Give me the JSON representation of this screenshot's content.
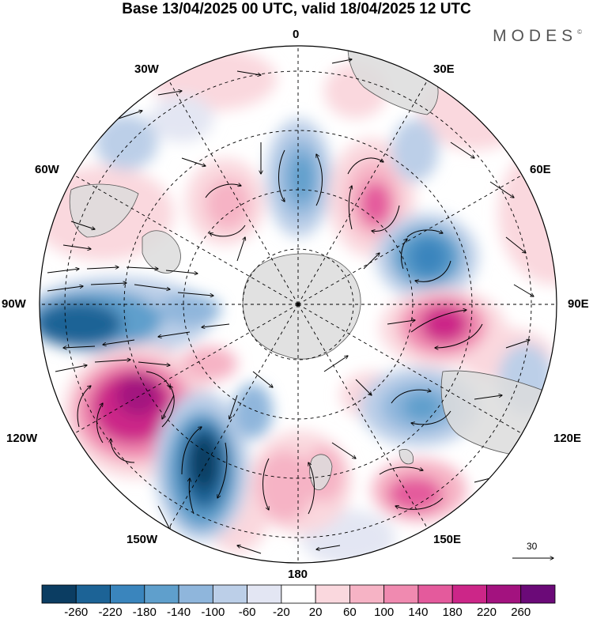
{
  "header": {
    "title": "Base 13/04/2025 00 UTC, valid 18/04/2025 12 UTC",
    "brand": "MODES",
    "brand_mark": "©"
  },
  "map": {
    "projection": "south-polar-stereographic",
    "meridian_labels": {
      "lon_0": "0",
      "lon_30e": "30E",
      "lon_60e": "60E",
      "lon_90e": "90E",
      "lon_120e": "120E",
      "lon_150e": "150E",
      "lon_180": "180",
      "lon_150w": "150W",
      "lon_120w": "120W",
      "lon_90w": "90W",
      "lon_60w": "60W",
      "lon_30w": "30W"
    },
    "land_color": "#dcdcdc",
    "grid_style": "dashed"
  },
  "vector_reference": {
    "value": "30"
  },
  "colorbar": {
    "colors": [
      "#0b3d62",
      "#1c6396",
      "#3a85bd",
      "#5f9fcc",
      "#8fb6dc",
      "#bccfe8",
      "#e3e6f3",
      "#ffffff",
      "#fad8de",
      "#f6b3c5",
      "#f08ab0",
      "#e45a9c",
      "#cc2688",
      "#a3127f",
      "#6b0a78"
    ],
    "ticks": [
      "-260",
      "-220",
      "-180",
      "-140",
      "-100",
      "-60",
      "-20",
      "20",
      "60",
      "100",
      "140",
      "180",
      "220",
      "260"
    ]
  }
}
